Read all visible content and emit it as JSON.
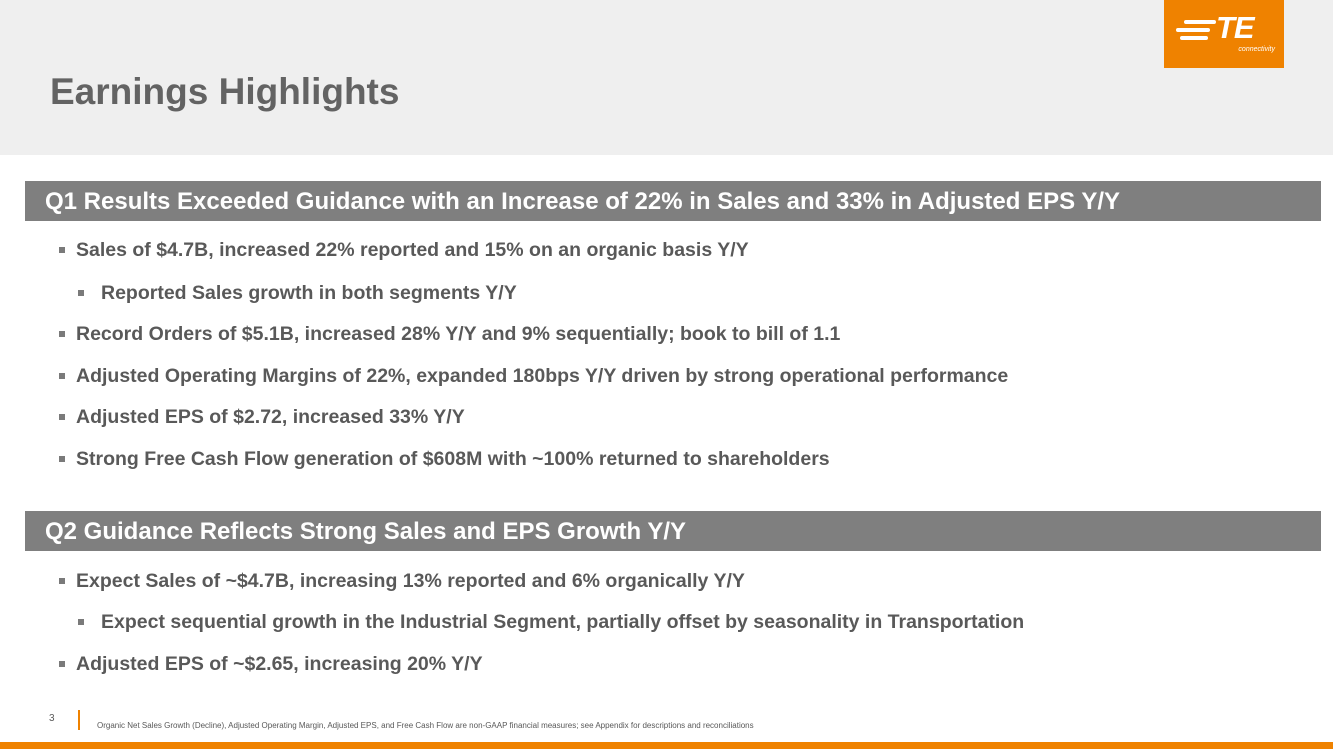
{
  "brand": {
    "logo_text": "TE",
    "logo_subtext": "connectivity",
    "accent_color": "#ef8200",
    "bar_color": "#7f7f7f"
  },
  "page": {
    "title": "Earnings Highlights",
    "number": "3"
  },
  "sections": [
    {
      "heading": "Q1 Results Exceeded Guidance with an Increase of 22% in Sales and 33% in Adjusted EPS Y/Y",
      "bullets": [
        {
          "level": 1,
          "text": "Sales of $4.7B, increased 22% reported and 15% on an organic basis Y/Y"
        },
        {
          "level": 2,
          "text": "Reported Sales growth in both segments Y/Y"
        },
        {
          "level": 1,
          "text": "Record Orders of $5.1B, increased 28% Y/Y and 9% sequentially; book to bill of 1.1"
        },
        {
          "level": 1,
          "text": "Adjusted Operating Margins of 22%, expanded 180bps Y/Y driven by strong operational performance"
        },
        {
          "level": 1,
          "text": "Adjusted EPS of $2.72, increased 33% Y/Y"
        },
        {
          "level": 1,
          "text": "Strong Free Cash Flow generation of $608M with ~100% returned to shareholders"
        }
      ]
    },
    {
      "heading": "Q2 Guidance Reflects Strong Sales and EPS Growth Y/Y",
      "bullets": [
        {
          "level": 1,
          "text": "Expect Sales of ~$4.7B, increasing 13% reported and 6% organically Y/Y"
        },
        {
          "level": 2,
          "text": "Expect sequential growth in the Industrial Segment, partially offset by seasonality in Transportation"
        },
        {
          "level": 1,
          "text": "Adjusted EPS of ~$2.65, increasing 20% Y/Y"
        }
      ]
    }
  ],
  "footer": {
    "footnote": "Organic Net Sales Growth (Decline), Adjusted Operating Margin, Adjusted EPS, and Free Cash Flow are non-GAAP financial measures; see Appendix for descriptions and reconciliations"
  }
}
